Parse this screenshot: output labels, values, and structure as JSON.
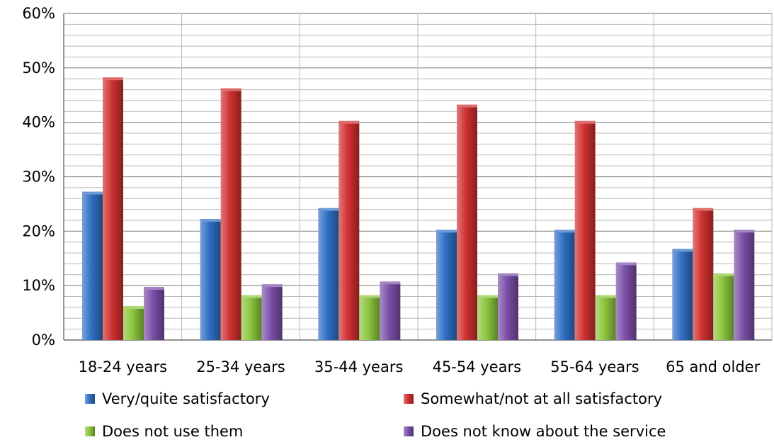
{
  "chart_data": {
    "type": "bar",
    "categories": [
      "18-24 years",
      "25-34 years",
      "35-44 years",
      "45-54 years",
      "55-64 years",
      "65 and older"
    ],
    "series": [
      {
        "name": "Very/quite satisfactory",
        "color": "#2f6fc4",
        "values": [
          27,
          22,
          24,
          20,
          20,
          16.5
        ]
      },
      {
        "name": "Somewhat/not at all satisfactory",
        "color": "#d03030",
        "values": [
          48,
          46,
          40,
          43,
          40,
          24
        ]
      },
      {
        "name": "Does not use them",
        "color": "#8cc63e",
        "values": [
          6,
          8,
          8,
          8,
          8,
          12
        ]
      },
      {
        "name": "Does not know about the service",
        "color": "#7a4fa8",
        "values": [
          9.5,
          10,
          10.5,
          12,
          14,
          20
        ]
      }
    ],
    "y_ticks": [
      "0%",
      "10%",
      "20%",
      "30%",
      "40%",
      "50%",
      "60%"
    ],
    "ylim": [
      0,
      60
    ],
    "y_unit": "%",
    "grid": true,
    "minor_grid_step": 2,
    "legend_position": "bottom",
    "title": "",
    "xlabel": "",
    "ylabel": ""
  }
}
